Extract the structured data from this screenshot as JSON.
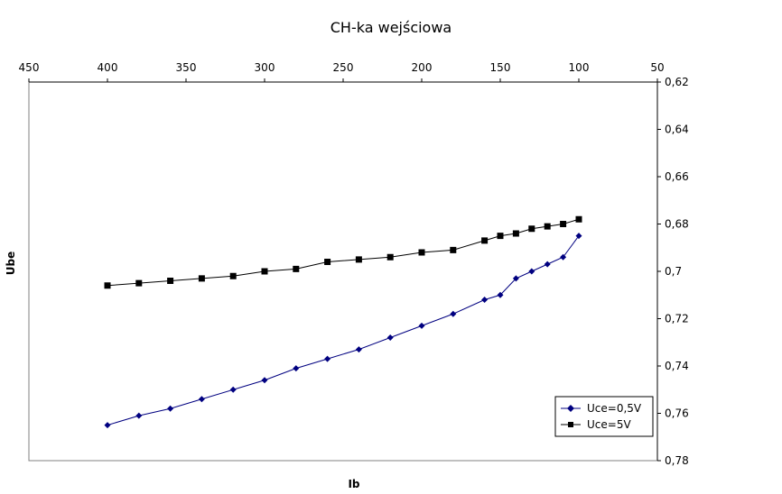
{
  "chart_data": {
    "type": "line",
    "title": "CH-ka wejściowa",
    "xlabel": "Ib",
    "ylabel": "Ube",
    "x_axis_position": "top",
    "x_reversed": true,
    "xlim": [
      50,
      450
    ],
    "xticks": [
      450,
      400,
      350,
      300,
      250,
      200,
      150,
      100,
      50
    ],
    "y_axis_position": "right",
    "y_reversed": true,
    "ylim": [
      0.62,
      0.78
    ],
    "yticks": [
      0.62,
      0.64,
      0.66,
      0.68,
      0.7,
      0.72,
      0.74,
      0.76,
      0.78
    ],
    "ytick_labels": [
      "0,62",
      "0,64",
      "0,66",
      "0,68",
      "0,7",
      "0,72",
      "0,74",
      "0,76",
      "0,78"
    ],
    "grid": false,
    "legend_position": "bottom-right",
    "series": [
      {
        "name": "Uce=0,5V",
        "color": "#000080",
        "marker": "diamond",
        "x": [
          400,
          380,
          360,
          340,
          320,
          300,
          280,
          260,
          240,
          220,
          200,
          180,
          160,
          150,
          140,
          130,
          120,
          110,
          100
        ],
        "y": [
          0.765,
          0.761,
          0.758,
          0.754,
          0.75,
          0.746,
          0.741,
          0.737,
          0.733,
          0.728,
          0.723,
          0.718,
          0.712,
          0.71,
          0.703,
          0.7,
          0.697,
          0.694,
          0.685
        ]
      },
      {
        "name": "Uce=5V",
        "color": "#000000",
        "marker": "square",
        "x": [
          400,
          380,
          360,
          340,
          320,
          300,
          280,
          260,
          240,
          220,
          200,
          180,
          160,
          150,
          140,
          130,
          120,
          110,
          100
        ],
        "y": [
          0.706,
          0.705,
          0.704,
          0.703,
          0.702,
          0.7,
          0.699,
          0.696,
          0.695,
          0.694,
          0.692,
          0.691,
          0.687,
          0.685,
          0.684,
          0.682,
          0.681,
          0.68,
          0.678
        ]
      }
    ]
  }
}
